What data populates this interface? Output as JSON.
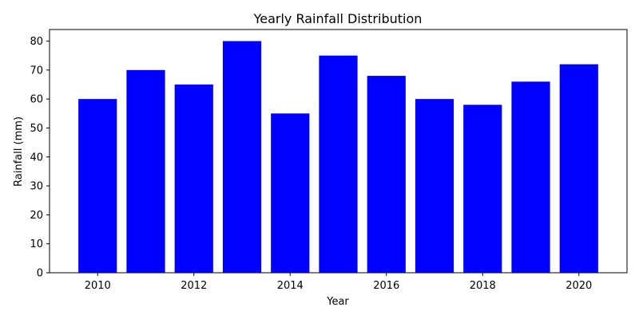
{
  "chart_data": {
    "type": "bar",
    "title": "Yearly Rainfall Distribution",
    "xlabel": "Year",
    "ylabel": "Rainfall (mm)",
    "x": [
      2010,
      2011,
      2012,
      2013,
      2014,
      2015,
      2016,
      2017,
      2018,
      2019,
      2020
    ],
    "values": [
      60,
      70,
      65,
      80,
      55,
      75,
      68,
      60,
      58,
      66,
      72
    ],
    "xlim": [
      2009,
      2021
    ],
    "ylim": [
      0,
      84
    ],
    "xticks": [
      2010,
      2012,
      2014,
      2016,
      2018,
      2020
    ],
    "yticks": [
      0,
      10,
      20,
      30,
      40,
      50,
      60,
      70,
      80
    ],
    "bar_color": "#0000ff",
    "grid": false,
    "legend": "none"
  }
}
